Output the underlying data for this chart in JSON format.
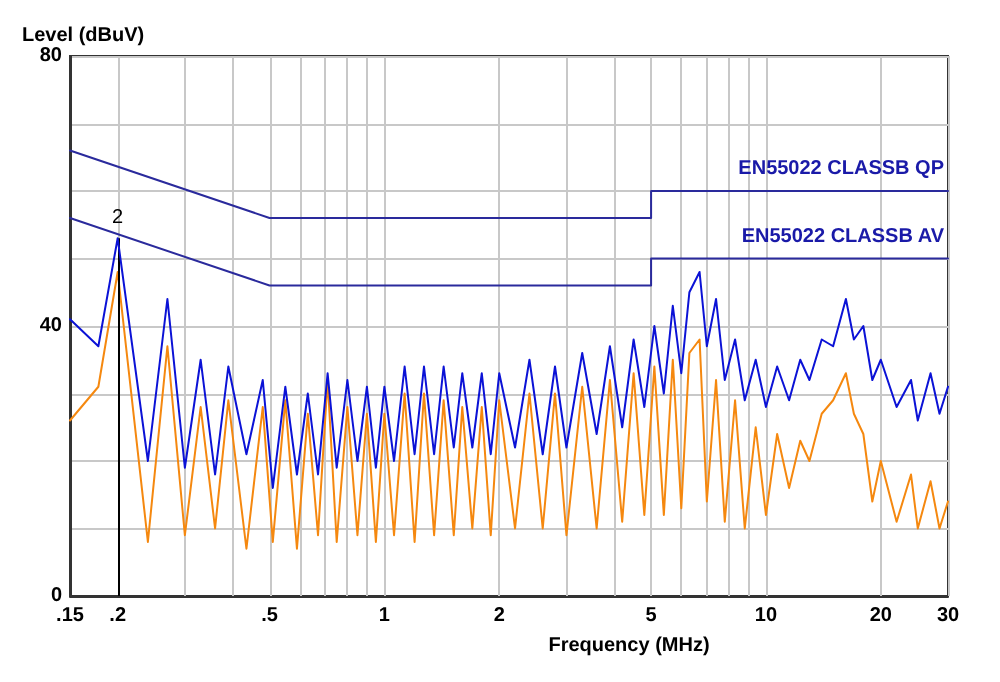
{
  "chart_data": {
    "type": "line",
    "ylabel": "Level (dBuV)",
    "xlabel": "Frequency (MHz)",
    "log": "x",
    "xlim": [
      0.15,
      30
    ],
    "xticks": [
      {
        "value": 0.15,
        "label": ".15"
      },
      {
        "value": 0.2,
        "label": ".2"
      },
      {
        "value": 0.3,
        "label": null
      },
      {
        "value": 0.4,
        "label": null
      },
      {
        "value": 0.5,
        "label": ".5"
      },
      {
        "value": 0.6,
        "label": null
      },
      {
        "value": 0.7,
        "label": null
      },
      {
        "value": 0.8,
        "label": null
      },
      {
        "value": 0.9,
        "label": null
      },
      1,
      2,
      {
        "value": 3,
        "label": null
      },
      {
        "value": 4,
        "label": null
      },
      5,
      {
        "value": 6,
        "label": null
      },
      {
        "value": 7,
        "label": null
      },
      {
        "value": 8,
        "label": null
      },
      {
        "value": 9,
        "label": null
      },
      10,
      20,
      30
    ],
    "ylim": [
      0,
      80
    ],
    "yticks": [
      0,
      {
        "value": 10,
        "label": null
      },
      {
        "value": 20,
        "label": null
      },
      {
        "value": 30,
        "label": null
      },
      40,
      {
        "value": 50,
        "label": null
      },
      {
        "value": 60,
        "label": null
      },
      {
        "value": 70,
        "label": null
      },
      80
    ],
    "grid": true,
    "legend": false,
    "marker": "none",
    "line_style": "solid",
    "annotations": [
      {
        "text": "2",
        "x": 0.2,
        "y": 53
      }
    ],
    "series": [
      {
        "name": "EN55022 CLASSB QP",
        "color": "#2a2a9c",
        "x": [
          0.15,
          0.5,
          5,
          5,
          30
        ],
        "values": [
          66,
          56,
          56,
          60,
          60
        ]
      },
      {
        "name": "EN55022 CLASSB AV",
        "color": "#2a2a9c",
        "x": [
          0.15,
          0.5,
          5,
          5,
          30
        ],
        "values": [
          56,
          46,
          46,
          50,
          50
        ]
      },
      {
        "color": "#f5880f",
        "x": [
          0.15,
          0.178,
          0.2,
          0.24,
          0.27,
          0.3,
          0.33,
          0.36,
          0.39,
          0.435,
          0.48,
          0.51,
          0.55,
          0.59,
          0.63,
          0.67,
          0.71,
          0.75,
          0.8,
          0.85,
          0.9,
          0.95,
          1,
          1.06,
          1.13,
          1.2,
          1.27,
          1.35,
          1.43,
          1.52,
          1.6,
          1.7,
          1.8,
          1.9,
          2,
          2.2,
          2.4,
          2.6,
          2.8,
          3,
          3.3,
          3.6,
          3.9,
          4.2,
          4.5,
          4.8,
          5.1,
          5.4,
          5.7,
          6,
          6.3,
          6.7,
          7,
          7.4,
          7.8,
          8.3,
          8.8,
          9.4,
          10,
          10.7,
          11.5,
          12.3,
          13,
          14,
          15,
          16.2,
          17,
          18,
          19,
          20,
          22,
          24,
          25,
          27,
          28.5,
          30
        ],
        "values": [
          26,
          31,
          48,
          8,
          37,
          9,
          28,
          10,
          29,
          7,
          28,
          8,
          29,
          7,
          27,
          9,
          32,
          8,
          28,
          9,
          27,
          8,
          27,
          9,
          30,
          8,
          30,
          9,
          29,
          9,
          28,
          10,
          28,
          9,
          29,
          10,
          30,
          10,
          30,
          9,
          31,
          10,
          32,
          11,
          33,
          12,
          34,
          12,
          35,
          13,
          36,
          38,
          14,
          32,
          11,
          29,
          10,
          25,
          12,
          24,
          16,
          23,
          20,
          27,
          29,
          33,
          27,
          24,
          14,
          20,
          11,
          18,
          10,
          17,
          10,
          14
        ]
      },
      {
        "color": "#0b12d6",
        "x": [
          0.15,
          0.178,
          0.2,
          0.24,
          0.27,
          0.3,
          0.33,
          0.36,
          0.39,
          0.435,
          0.48,
          0.51,
          0.55,
          0.59,
          0.63,
          0.67,
          0.71,
          0.75,
          0.8,
          0.85,
          0.9,
          0.95,
          1,
          1.06,
          1.13,
          1.2,
          1.27,
          1.35,
          1.43,
          1.52,
          1.6,
          1.7,
          1.8,
          1.9,
          2,
          2.2,
          2.4,
          2.6,
          2.8,
          3,
          3.3,
          3.6,
          3.9,
          4.2,
          4.5,
          4.8,
          5.1,
          5.4,
          5.7,
          6,
          6.3,
          6.7,
          7,
          7.4,
          7.8,
          8.3,
          8.8,
          9.4,
          10,
          10.7,
          11.5,
          12.3,
          13,
          14,
          15,
          16.2,
          17,
          18,
          19,
          20,
          22,
          24,
          25,
          27,
          28.5,
          30
        ],
        "values": [
          41,
          37,
          53,
          20,
          44,
          19,
          35,
          18,
          34,
          21,
          32,
          16,
          31,
          18,
          30,
          18,
          33,
          19,
          32,
          20,
          31,
          19,
          31,
          20,
          34,
          21,
          34,
          21,
          34,
          22,
          33,
          22,
          33,
          21,
          33,
          22,
          35,
          21,
          34,
          22,
          36,
          24,
          37,
          25,
          38,
          28,
          40,
          30,
          43,
          33,
          45,
          48,
          37,
          44,
          32,
          38,
          29,
          35,
          28,
          34,
          29,
          35,
          32,
          38,
          37,
          44,
          38,
          40,
          32,
          35,
          28,
          32,
          26,
          33,
          27,
          31
        ]
      }
    ]
  }
}
